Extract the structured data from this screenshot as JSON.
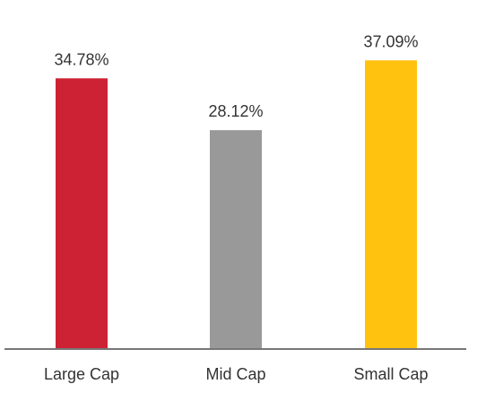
{
  "chart_data": {
    "type": "bar",
    "categories": [
      "Large Cap",
      "Mid Cap",
      "Small Cap"
    ],
    "values": [
      34.78,
      28.12,
      37.09
    ],
    "value_labels": [
      "34.78%",
      "28.12%",
      "37.09%"
    ],
    "colors": [
      "#cc2233",
      "#999999",
      "#ffc20e"
    ],
    "title": "",
    "xlabel": "",
    "ylabel": "",
    "ylim": [
      0,
      41.5
    ],
    "grid": false,
    "legend": "none"
  }
}
